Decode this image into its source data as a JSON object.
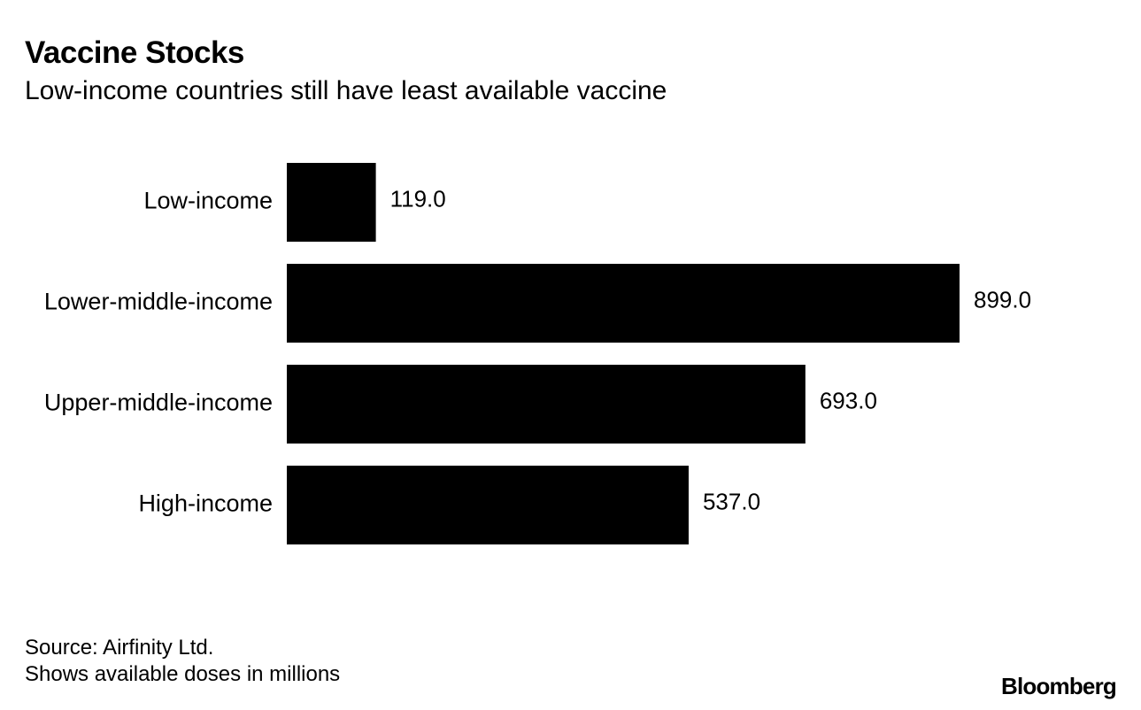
{
  "header": {
    "title": "Vaccine Stocks",
    "subtitle": "Low-income countries still have least available vaccine"
  },
  "footer": {
    "source": "Source: Airfinity Ltd.",
    "note": "Shows available doses in millions",
    "brand": "Bloomberg"
  },
  "chart_data": {
    "type": "bar",
    "orientation": "horizontal",
    "title": "Vaccine Stocks",
    "subtitle": "Low-income countries still have least available vaccine",
    "categories": [
      "Low-income",
      "Lower-middle-income",
      "Upper-middle-income",
      "High-income"
    ],
    "values": [
      119.0,
      899.0,
      693.0,
      537.0
    ],
    "value_labels": [
      "119.0",
      "899.0",
      "693.0",
      "537.0"
    ],
    "xlim": [
      0,
      899
    ],
    "grid": false,
    "bar_color": "#000000"
  }
}
